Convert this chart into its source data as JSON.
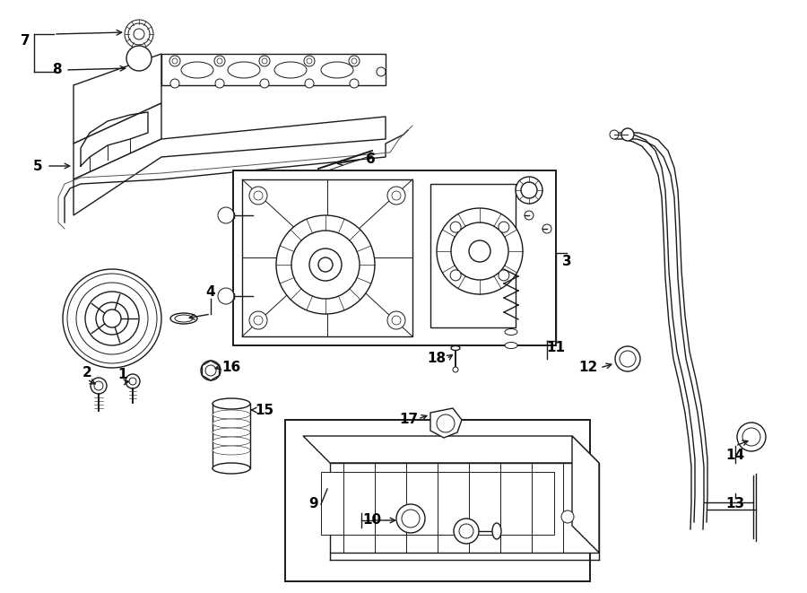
{
  "bg_color": "#ffffff",
  "line_color": "#1a1a1a",
  "fig_width": 9.0,
  "fig_height": 6.61,
  "dpi": 100,
  "label_fs": 11,
  "parts_border_color": "#333333",
  "lw_main": 1.0,
  "lw_thin": 0.7,
  "lw_thick": 1.4
}
